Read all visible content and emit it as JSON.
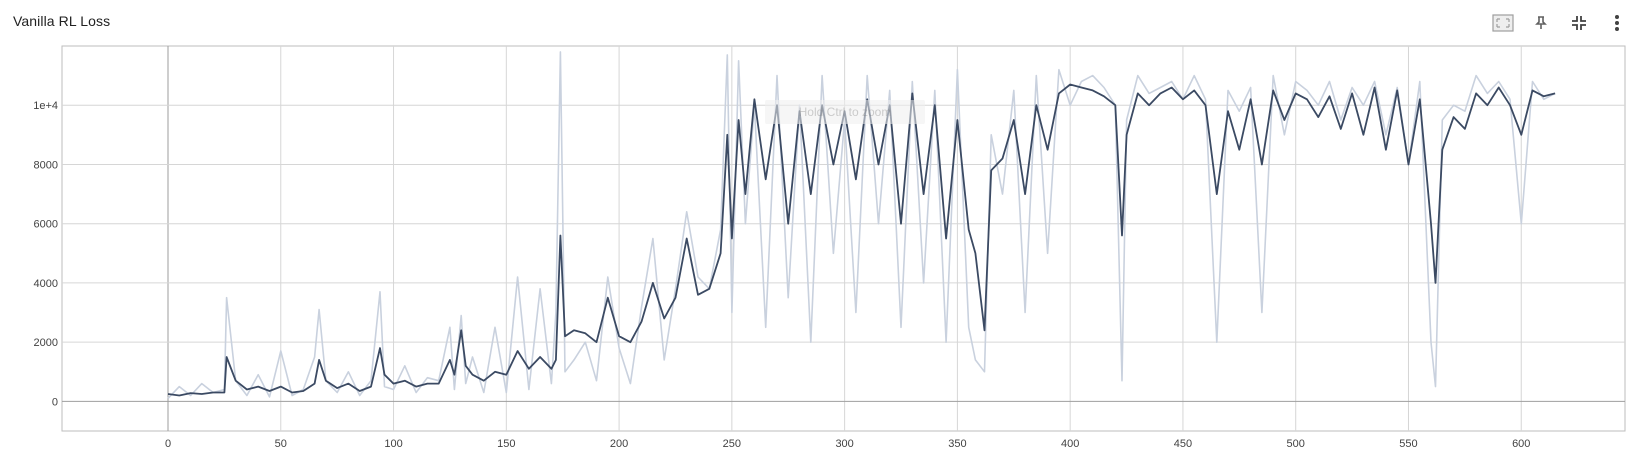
{
  "card": {
    "title": "Vanilla RL Loss"
  },
  "toolbar": {
    "buttons": [
      {
        "name": "fit-domain-icon",
        "label": "Fit domain to data"
      },
      {
        "name": "pin-icon",
        "label": "Pin card"
      },
      {
        "name": "collapse-icon",
        "label": "Exit full size"
      },
      {
        "name": "more-vert-icon",
        "label": "More"
      }
    ]
  },
  "colors": {
    "raw_series": "#c9d1de",
    "smoothed_series": "#3b4a63",
    "grid": "#d6d6d6",
    "zero_line": "#9e9e9e",
    "frame": "#bdbdbd"
  },
  "chart_data": {
    "type": "line",
    "title": "Vanilla RL Loss",
    "xlabel": "",
    "ylabel": "",
    "xlim": [
      -47,
      646
    ],
    "ylim": [
      -1000,
      12000
    ],
    "x_ticks": [
      0,
      50,
      100,
      150,
      200,
      250,
      300,
      350,
      400,
      450,
      500,
      550,
      600
    ],
    "x_tick_labels": [
      "0",
      "50",
      "100",
      "150",
      "200",
      "250",
      "300",
      "350",
      "400",
      "450",
      "500",
      "550",
      "600"
    ],
    "y_ticks": [
      0,
      2000,
      4000,
      6000,
      8000,
      10000
    ],
    "y_tick_labels": [
      "0",
      "2000",
      "4000",
      "6000",
      "8000",
      "1e+4"
    ],
    "grid": true,
    "series": [
      {
        "role": "raw",
        "x": [
          0,
          5,
          10,
          15,
          20,
          25,
          26,
          30,
          35,
          40,
          45,
          50,
          55,
          60,
          65,
          67,
          70,
          75,
          80,
          85,
          90,
          94,
          96,
          100,
          105,
          110,
          115,
          120,
          125,
          127,
          130,
          132,
          135,
          140,
          145,
          150,
          155,
          160,
          165,
          170,
          172,
          174,
          176,
          180,
          185,
          190,
          195,
          200,
          205,
          210,
          215,
          220,
          225,
          230,
          235,
          240,
          245,
          248,
          250,
          253,
          256,
          260,
          265,
          270,
          275,
          280,
          285,
          290,
          295,
          300,
          305,
          310,
          315,
          320,
          325,
          330,
          335,
          340,
          345,
          350,
          355,
          358,
          362,
          365,
          370,
          375,
          380,
          385,
          390,
          395,
          400,
          405,
          410,
          415,
          420,
          423,
          425,
          430,
          435,
          440,
          445,
          450,
          455,
          460,
          465,
          470,
          475,
          480,
          485,
          490,
          495,
          500,
          505,
          510,
          515,
          520,
          525,
          530,
          535,
          540,
          545,
          550,
          555,
          560,
          562,
          565,
          570,
          575,
          580,
          585,
          590,
          595,
          600,
          605,
          610,
          615
        ],
        "y": [
          100,
          500,
          200,
          600,
          300,
          400,
          3500,
          700,
          200,
          900,
          150,
          1700,
          200,
          400,
          1500,
          3100,
          700,
          300,
          1000,
          200,
          700,
          3700,
          500,
          400,
          1200,
          300,
          800,
          700,
          2500,
          400,
          2900,
          600,
          1500,
          300,
          2500,
          300,
          4200,
          400,
          3800,
          600,
          3000,
          11800,
          1000,
          1400,
          2000,
          700,
          4200,
          1800,
          600,
          3200,
          5500,
          1400,
          3800,
          6400,
          4200,
          3800,
          5800,
          11700,
          3000,
          11500,
          6000,
          10000,
          2500,
          11000,
          3500,
          10000,
          2000,
          11000,
          5000,
          9500,
          3000,
          11000,
          6000,
          10500,
          2500,
          10800,
          4000,
          10500,
          2000,
          11200,
          2500,
          1400,
          1000,
          9000,
          7000,
          10500,
          3000,
          11000,
          5000,
          11200,
          10000,
          10800,
          11000,
          10600,
          10000,
          700,
          9500,
          11000,
          10400,
          10600,
          10800,
          10200,
          11000,
          10200,
          2000,
          10500,
          9800,
          10600,
          3000,
          11000,
          9000,
          10800,
          10500,
          10000,
          10800,
          9500,
          10600,
          10000,
          10800,
          9000,
          10600,
          8000,
          10800,
          2000,
          500,
          9500,
          10000,
          9800,
          11000,
          10400,
          10800,
          10200,
          6000,
          10800,
          10200,
          10400
        ]
      },
      {
        "role": "smoothed",
        "x": [
          0,
          5,
          10,
          15,
          20,
          25,
          26,
          30,
          35,
          40,
          45,
          50,
          55,
          60,
          65,
          67,
          70,
          75,
          80,
          85,
          90,
          94,
          96,
          100,
          105,
          110,
          115,
          120,
          125,
          127,
          130,
          132,
          135,
          140,
          145,
          150,
          155,
          160,
          165,
          170,
          172,
          174,
          176,
          180,
          185,
          190,
          195,
          200,
          205,
          210,
          215,
          220,
          225,
          230,
          235,
          240,
          245,
          248,
          250,
          253,
          256,
          260,
          265,
          270,
          275,
          280,
          285,
          290,
          295,
          300,
          305,
          310,
          315,
          320,
          325,
          330,
          335,
          340,
          345,
          350,
          355,
          358,
          362,
          365,
          370,
          375,
          380,
          385,
          390,
          395,
          400,
          405,
          410,
          415,
          420,
          423,
          425,
          430,
          435,
          440,
          445,
          450,
          455,
          460,
          465,
          470,
          475,
          480,
          485,
          490,
          495,
          500,
          505,
          510,
          515,
          520,
          525,
          530,
          535,
          540,
          545,
          550,
          555,
          560,
          562,
          565,
          570,
          575,
          580,
          585,
          590,
          595,
          600,
          605,
          610,
          615
        ],
        "y": [
          250,
          200,
          280,
          250,
          300,
          300,
          1500,
          700,
          400,
          500,
          350,
          500,
          300,
          350,
          600,
          1400,
          700,
          450,
          600,
          350,
          500,
          1800,
          900,
          600,
          700,
          500,
          600,
          600,
          1400,
          900,
          2400,
          1200,
          900,
          700,
          1000,
          900,
          1700,
          1100,
          1500,
          1100,
          1400,
          5600,
          2200,
          2400,
          2300,
          2000,
          3500,
          2200,
          2000,
          2700,
          4000,
          2800,
          3500,
          5500,
          3600,
          3800,
          5000,
          9000,
          5500,
          9500,
          7000,
          10200,
          7500,
          10000,
          6000,
          9800,
          7000,
          10000,
          8000,
          9800,
          7500,
          10200,
          8000,
          10000,
          6000,
          10400,
          7000,
          10000,
          5500,
          9500,
          5800,
          5000,
          2400,
          7800,
          8200,
          9500,
          7000,
          10000,
          8500,
          10400,
          10700,
          10600,
          10500,
          10300,
          10000,
          5600,
          9000,
          10400,
          10000,
          10400,
          10600,
          10200,
          10500,
          10000,
          7000,
          9800,
          8500,
          10200,
          8000,
          10500,
          9500,
          10400,
          10200,
          9600,
          10300,
          9200,
          10400,
          9000,
          10600,
          8500,
          10500,
          8000,
          10200,
          6000,
          4000,
          8500,
          9600,
          9200,
          10400,
          10000,
          10600,
          10000,
          9000,
          10500,
          10300,
          10400
        ]
      }
    ],
    "annotation": {
      "hint": "Hold Ctrl to zoom"
    }
  }
}
